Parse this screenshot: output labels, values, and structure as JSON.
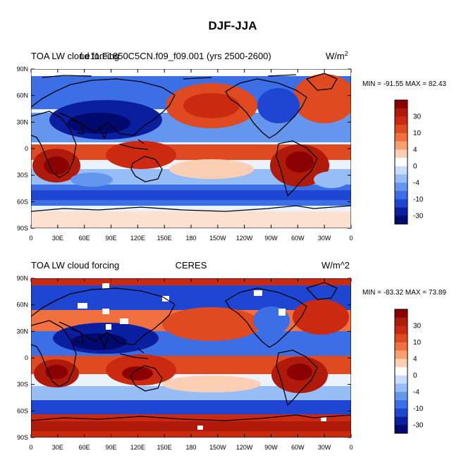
{
  "figure": {
    "title": "DJF-JJA"
  },
  "panels": [
    {
      "left_title": "TOA LW cloud forcing",
      "center_title": "f.e11.F1850C5CN.f09_f09.001 (yrs 2500-2600)",
      "units_base": "W/m",
      "units_sup": "2",
      "stats": "MIN = -91.55  MAX =  82.43"
    },
    {
      "left_title": "TOA LW cloud forcing",
      "center_title": "CERES",
      "units_base": "W/m^2",
      "units_sup": "",
      "stats": "MIN = -83.32  MAX =  73.89"
    }
  ],
  "axes": {
    "lat_labels": [
      "90N",
      "60N",
      "30N",
      "0",
      "30S",
      "60S",
      "90S"
    ],
    "lon_labels": [
      "0",
      "30E",
      "60E",
      "90E",
      "120E",
      "150E",
      "180",
      "150W",
      "120W",
      "90W",
      "60W",
      "30W",
      "0"
    ]
  },
  "colorbar": {
    "labels": [
      "30",
      "10",
      "4",
      "0",
      "-4",
      "-10",
      "-30"
    ],
    "colors": [
      "#8b0000",
      "#b01a0a",
      "#cc2a10",
      "#e04a20",
      "#f07040",
      "#f9a070",
      "#fdd0b5",
      "#ffffff",
      "#c8dcff",
      "#96bdf5",
      "#6496ee",
      "#3c6ee6",
      "#1e46d2",
      "#0a1ea0",
      "#000a6e"
    ]
  },
  "colors": {
    "ocean_base": "#eaf2fd",
    "coastline": "#000000"
  }
}
